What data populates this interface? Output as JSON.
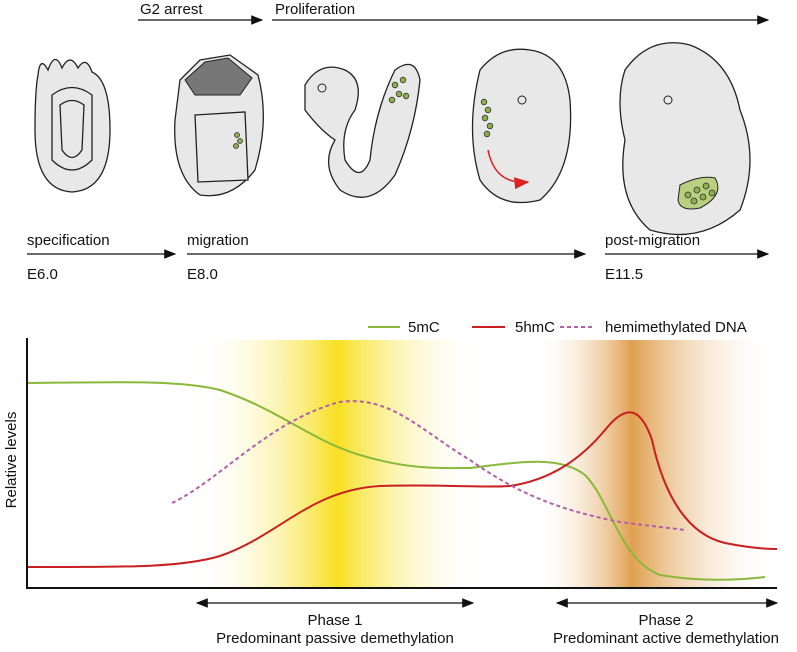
{
  "top_arrows": [
    "G2 arrest",
    "Proliferation"
  ],
  "stages": [
    {
      "label": "specification",
      "time": "E6.0"
    },
    {
      "label": "migration",
      "time": "E8.0"
    },
    {
      "label": "post-migration",
      "time": "E11.5"
    }
  ],
  "legend": [
    "5mC",
    "5hmC",
    "hemimethylated DNA"
  ],
  "y_axis_label": "Relative levels",
  "phases": [
    {
      "name": "Phase 1",
      "description": "Predominant passive demethylation"
    },
    {
      "name": "Phase 2",
      "description": "Predominant active demethylation"
    }
  ]
}
